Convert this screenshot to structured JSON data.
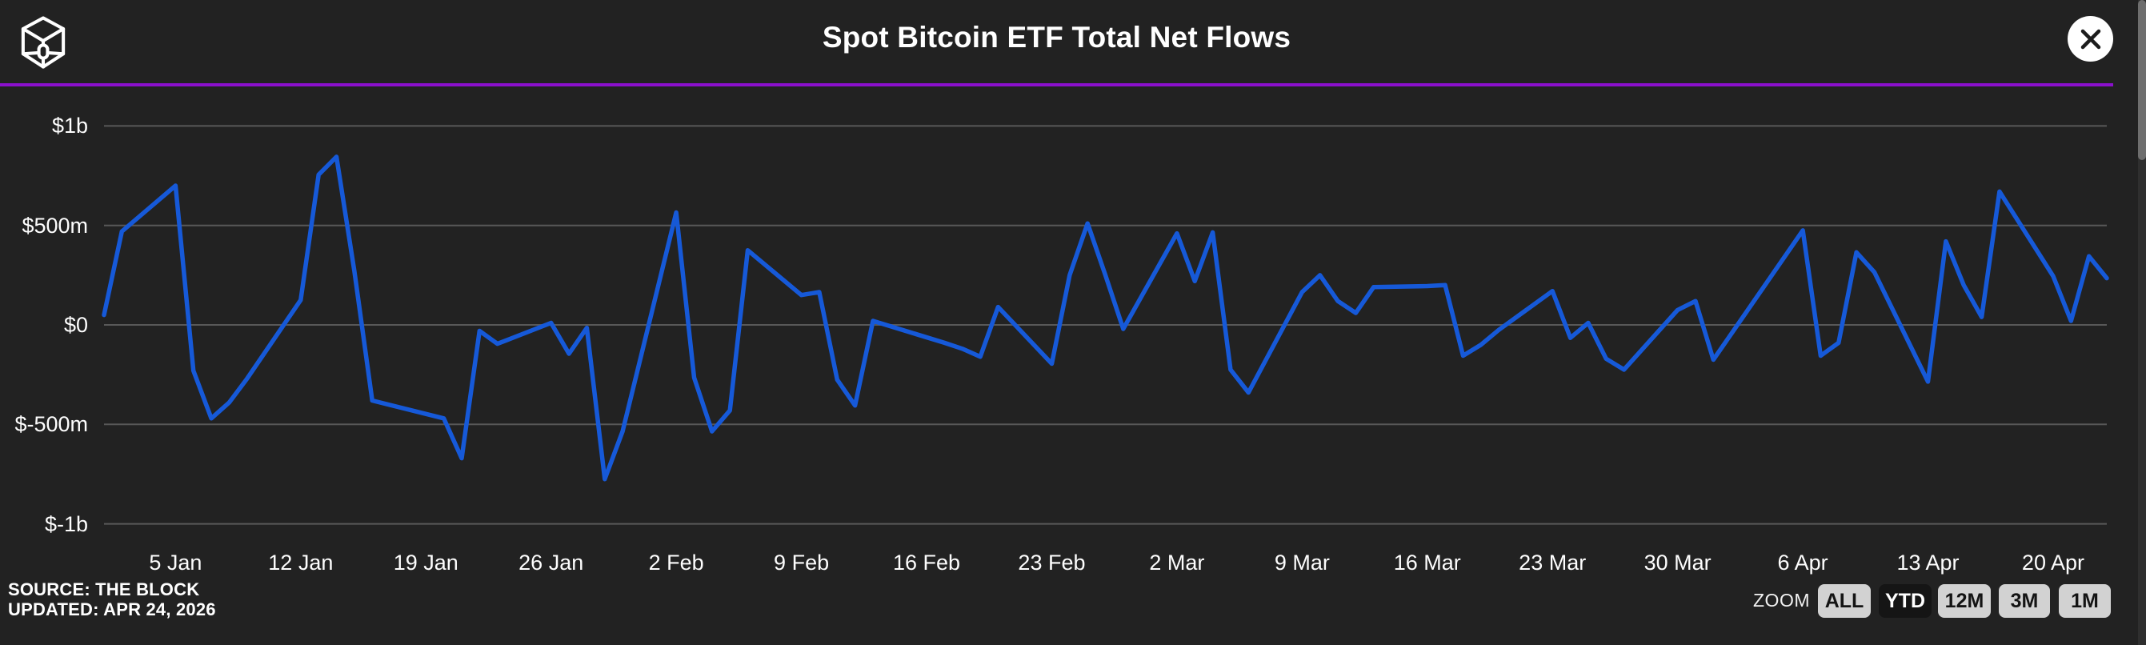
{
  "header": {
    "title": "Spot Bitcoin ETF Total Net Flows",
    "logo": "the-block-logo",
    "divider_color": "#8b10cd"
  },
  "footer": {
    "source_line1": "SOURCE: THE BLOCK",
    "source_line2": "UPDATED: APR 24, 2026"
  },
  "zoom_controls": {
    "label": "ZOOM",
    "buttons": [
      {
        "label": "ALL",
        "selected": false
      },
      {
        "label": "YTD",
        "selected": true
      },
      {
        "label": "12M",
        "selected": false
      },
      {
        "label": "3M",
        "selected": false
      },
      {
        "label": "1M",
        "selected": false
      }
    ]
  },
  "colors": {
    "background": "#222222",
    "line": "#1659d8",
    "gridline": "#585858",
    "divider": "#8b10cd",
    "button_bg": "#d2d2d2",
    "button_selected_bg": "#151515"
  },
  "chart_data": {
    "type": "line",
    "title": "Spot Bitcoin ETF Total Net Flows",
    "series_name": "Spot Bitcoin ETF daily total net flow",
    "unit": "USD millions",
    "line_color": "#1659d8",
    "grid": "horizontal-only",
    "legend": "none",
    "y_axis": {
      "tick_labels": [
        "$1b",
        "$500m",
        "$0",
        "$-500m",
        "$-1b"
      ],
      "tick_values": [
        1000,
        500,
        0,
        -500,
        -1000
      ],
      "ylim": [
        -1000,
        1000
      ]
    },
    "x_axis": {
      "domain": "1 Jan 2026 to 23 Apr 2026 (trading days)",
      "ticks": [
        {
          "label": "5 Jan",
          "day": 4
        },
        {
          "label": "12 Jan",
          "day": 11
        },
        {
          "label": "19 Jan",
          "day": 18
        },
        {
          "label": "26 Jan",
          "day": 25
        },
        {
          "label": "2 Feb",
          "day": 32
        },
        {
          "label": "9 Feb",
          "day": 39
        },
        {
          "label": "16 Feb",
          "day": 46
        },
        {
          "label": "23 Feb",
          "day": 53
        },
        {
          "label": "2 Mar",
          "day": 60
        },
        {
          "label": "9 Mar",
          "day": 67
        },
        {
          "label": "16 Mar",
          "day": 74
        },
        {
          "label": "23 Mar",
          "day": 81
        },
        {
          "label": "30 Mar",
          "day": 88
        },
        {
          "label": "6 Apr",
          "day": 95
        },
        {
          "label": "13 Apr",
          "day": 102
        },
        {
          "label": "20 Apr",
          "day": 109
        }
      ]
    },
    "points": [
      {
        "date": "1 Jan",
        "day": 0,
        "value_musd": 50
      },
      {
        "date": "2 Jan",
        "day": 1,
        "value_musd": 470
      },
      {
        "date": "5 Jan",
        "day": 4,
        "value_musd": 700
      },
      {
        "date": "6 Jan",
        "day": 5,
        "value_musd": -230
      },
      {
        "date": "7 Jan",
        "day": 6,
        "value_musd": -470
      },
      {
        "date": "8 Jan",
        "day": 7,
        "value_musd": -390
      },
      {
        "date": "9 Jan",
        "day": 8,
        "value_musd": -270
      },
      {
        "date": "12 Jan",
        "day": 11,
        "value_musd": 125
      },
      {
        "date": "13 Jan",
        "day": 12,
        "value_musd": 755
      },
      {
        "date": "14 Jan",
        "day": 13,
        "value_musd": 845
      },
      {
        "date": "15 Jan",
        "day": 14,
        "value_musd": 270
      },
      {
        "date": "16 Jan",
        "day": 15,
        "value_musd": -380
      },
      {
        "date": "20 Jan",
        "day": 19,
        "value_musd": -470
      },
      {
        "date": "21 Jan",
        "day": 20,
        "value_musd": -670
      },
      {
        "date": "22 Jan",
        "day": 21,
        "value_musd": -30
      },
      {
        "date": "23 Jan",
        "day": 22,
        "value_musd": -95
      },
      {
        "date": "26 Jan",
        "day": 25,
        "value_musd": 10
      },
      {
        "date": "27 Jan",
        "day": 26,
        "value_musd": -145
      },
      {
        "date": "28 Jan",
        "day": 27,
        "value_musd": -15
      },
      {
        "date": "29 Jan",
        "day": 28,
        "value_musd": -775
      },
      {
        "date": "30 Jan",
        "day": 29,
        "value_musd": -535
      },
      {
        "date": "2 Feb",
        "day": 32,
        "value_musd": 565
      },
      {
        "date": "3 Feb",
        "day": 33,
        "value_musd": -265
      },
      {
        "date": "4 Feb",
        "day": 34,
        "value_musd": -535
      },
      {
        "date": "5 Feb",
        "day": 35,
        "value_musd": -430
      },
      {
        "date": "6 Feb",
        "day": 36,
        "value_musd": 375
      },
      {
        "date": "9 Feb",
        "day": 39,
        "value_musd": 150
      },
      {
        "date": "10 Feb",
        "day": 40,
        "value_musd": 165
      },
      {
        "date": "11 Feb",
        "day": 41,
        "value_musd": -275
      },
      {
        "date": "12 Feb",
        "day": 42,
        "value_musd": -405
      },
      {
        "date": "13 Feb",
        "day": 43,
        "value_musd": 20
      },
      {
        "date": "17 Feb",
        "day": 47,
        "value_musd": -90
      },
      {
        "date": "18 Feb",
        "day": 48,
        "value_musd": -120
      },
      {
        "date": "19 Feb",
        "day": 49,
        "value_musd": -160
      },
      {
        "date": "20 Feb",
        "day": 50,
        "value_musd": 90
      },
      {
        "date": "23 Feb",
        "day": 53,
        "value_musd": -195
      },
      {
        "date": "24 Feb",
        "day": 54,
        "value_musd": 250
      },
      {
        "date": "25 Feb",
        "day": 55,
        "value_musd": 510
      },
      {
        "date": "26 Feb",
        "day": 56,
        "value_musd": 250
      },
      {
        "date": "27 Feb",
        "day": 57,
        "value_musd": -20
      },
      {
        "date": "2 Mar",
        "day": 60,
        "value_musd": 460
      },
      {
        "date": "3 Mar",
        "day": 61,
        "value_musd": 220
      },
      {
        "date": "4 Mar",
        "day": 62,
        "value_musd": 465
      },
      {
        "date": "5 Mar",
        "day": 63,
        "value_musd": -225
      },
      {
        "date": "6 Mar",
        "day": 64,
        "value_musd": -340
      },
      {
        "date": "9 Mar",
        "day": 67,
        "value_musd": 165
      },
      {
        "date": "10 Mar",
        "day": 68,
        "value_musd": 250
      },
      {
        "date": "11 Mar",
        "day": 69,
        "value_musd": 120
      },
      {
        "date": "12 Mar",
        "day": 70,
        "value_musd": 60
      },
      {
        "date": "13 Mar",
        "day": 71,
        "value_musd": 190
      },
      {
        "date": "16 Mar",
        "day": 74,
        "value_musd": 195
      },
      {
        "date": "17 Mar",
        "day": 75,
        "value_musd": 200
      },
      {
        "date": "18 Mar",
        "day": 76,
        "value_musd": -155
      },
      {
        "date": "19 Mar",
        "day": 77,
        "value_musd": -100
      },
      {
        "date": "20 Mar",
        "day": 78,
        "value_musd": -25
      },
      {
        "date": "23 Mar",
        "day": 81,
        "value_musd": 170
      },
      {
        "date": "24 Mar",
        "day": 82,
        "value_musd": -65
      },
      {
        "date": "25 Mar",
        "day": 83,
        "value_musd": 10
      },
      {
        "date": "26 Mar",
        "day": 84,
        "value_musd": -170
      },
      {
        "date": "27 Mar",
        "day": 85,
        "value_musd": -225
      },
      {
        "date": "30 Mar",
        "day": 88,
        "value_musd": 75
      },
      {
        "date": "31 Mar",
        "day": 89,
        "value_musd": 120
      },
      {
        "date": "1 Apr",
        "day": 90,
        "value_musd": -175
      },
      {
        "date": "2 Apr",
        "day": 91,
        "value_musd": -45
      },
      {
        "date": "6 Apr",
        "day": 95,
        "value_musd": 475
      },
      {
        "date": "7 Apr",
        "day": 96,
        "value_musd": -155
      },
      {
        "date": "8 Apr",
        "day": 97,
        "value_musd": -90
      },
      {
        "date": "9 Apr",
        "day": 98,
        "value_musd": 365
      },
      {
        "date": "10 Apr",
        "day": 99,
        "value_musd": 265
      },
      {
        "date": "13 Apr",
        "day": 102,
        "value_musd": -285
      },
      {
        "date": "14 Apr",
        "day": 103,
        "value_musd": 420
      },
      {
        "date": "15 Apr",
        "day": 104,
        "value_musd": 200
      },
      {
        "date": "16 Apr",
        "day": 105,
        "value_musd": 40
      },
      {
        "date": "17 Apr",
        "day": 106,
        "value_musd": 670
      },
      {
        "date": "20 Apr",
        "day": 109,
        "value_musd": 245
      },
      {
        "date": "21 Apr",
        "day": 110,
        "value_musd": 20
      },
      {
        "date": "22 Apr",
        "day": 111,
        "value_musd": 345
      },
      {
        "date": "23 Apr",
        "day": 112,
        "value_musd": 235
      }
    ]
  }
}
